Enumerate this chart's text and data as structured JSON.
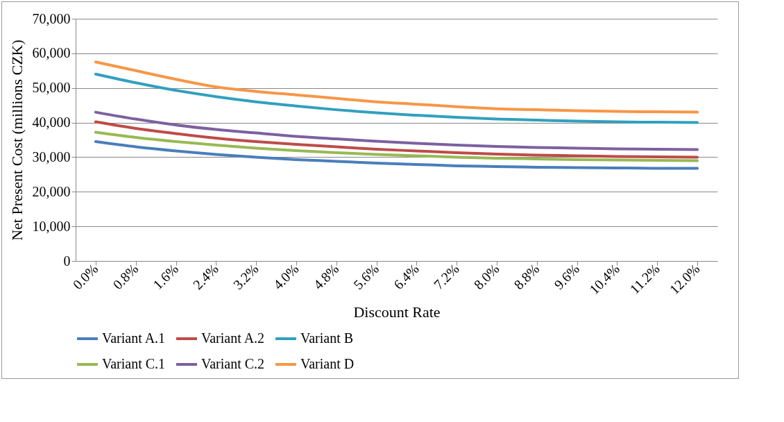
{
  "chart_data": {
    "type": "line",
    "xlabel": "Discount Rate",
    "ylabel": "Net Present Cost (millions CZK)",
    "categories": [
      "0.0%",
      "0.8%",
      "1.6%",
      "2.4%",
      "3.2%",
      "4.0%",
      "4.8%",
      "5.6%",
      "6.4%",
      "7.2%",
      "8.0%",
      "8.8%",
      "9.6%",
      "10.4%",
      "11.2%",
      "12.0%"
    ],
    "ylim": [
      0,
      70000
    ],
    "yticks": [
      {
        "value": 0,
        "label": "0"
      },
      {
        "value": 10000,
        "label": "10,000"
      },
      {
        "value": 20000,
        "label": "20,000"
      },
      {
        "value": 30000,
        "label": "30,000"
      },
      {
        "value": 40000,
        "label": "40,000"
      },
      {
        "value": 50000,
        "label": "50,000"
      },
      {
        "value": 60000,
        "label": "60,000"
      },
      {
        "value": 70000,
        "label": "70,000"
      }
    ],
    "grid": "y",
    "legend": "bottom",
    "marker": "none",
    "line_style": "solid",
    "series": [
      {
        "name": "Variant A.1",
        "color": "#4a7ebb",
        "values": [
          34500,
          33000,
          31800,
          30800,
          30000,
          29300,
          28800,
          28300,
          27900,
          27500,
          27300,
          27100,
          27000,
          26900,
          26800,
          26800
        ]
      },
      {
        "name": "Variant A.2",
        "color": "#be4b48",
        "values": [
          40200,
          38300,
          36800,
          35500,
          34500,
          33700,
          33000,
          32300,
          31800,
          31300,
          30900,
          30600,
          30400,
          30200,
          30100,
          30000
        ]
      },
      {
        "name": "Variant B",
        "color": "#31a0bf",
        "values": [
          54000,
          51500,
          49300,
          47500,
          46000,
          44800,
          43700,
          42800,
          42100,
          41500,
          41000,
          40700,
          40400,
          40200,
          40100,
          40000
        ]
      },
      {
        "name": "Variant C.1",
        "color": "#98b954",
        "values": [
          37200,
          35700,
          34500,
          33500,
          32600,
          31900,
          31300,
          30800,
          30400,
          30000,
          29700,
          29500,
          29300,
          29200,
          29100,
          29000
        ]
      },
      {
        "name": "Variant C.2",
        "color": "#7d60a0",
        "values": [
          43000,
          41000,
          39300,
          38000,
          37000,
          36000,
          35300,
          34600,
          34000,
          33500,
          33100,
          32800,
          32600,
          32400,
          32300,
          32200
        ]
      },
      {
        "name": "Variant D",
        "color": "#f79646",
        "values": [
          57500,
          55000,
          52500,
          50300,
          49000,
          48000,
          47000,
          46000,
          45300,
          44600,
          44000,
          43700,
          43400,
          43200,
          43100,
          43000
        ]
      }
    ]
  }
}
